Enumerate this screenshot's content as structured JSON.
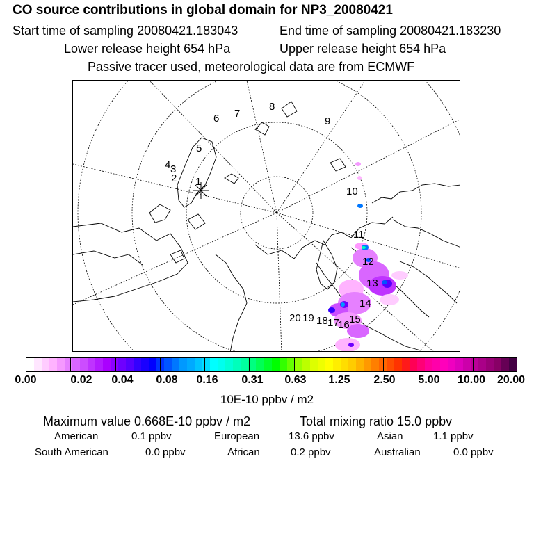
{
  "header": {
    "title": "CO  source contributions in global domain for NP3_20080421",
    "start_time": "Start time of sampling 20080421.183043",
    "end_time": "End time of sampling 20080421.183230",
    "lower_release": "Lower release height  654 hPa",
    "upper_release": "Upper release height  654 hPa",
    "tracer_note": "Passive tracer used, meteorological data are from ECMWF"
  },
  "map": {
    "trajectory_labels": [
      "1",
      "2",
      "3",
      "4",
      "5",
      "6",
      "7",
      "8",
      "9",
      "10",
      "11",
      "12",
      "13",
      "14",
      "15",
      "16",
      "17",
      "18",
      "19",
      "20"
    ],
    "source_marker": "asterisk-icon"
  },
  "colorbar": {
    "tick_labels": [
      "0.00",
      "0.02",
      "0.04",
      "0.08",
      "0.16",
      "0.31",
      "0.63",
      "1.25",
      "2.50",
      "5.00",
      "10.00",
      "20.00"
    ],
    "colors": [
      "#ffffff",
      "#ffe6ff",
      "#ffccff",
      "#ffb3ff",
      "#f599ff",
      "#e680ff",
      "#d966ff",
      "#cc4dff",
      "#bf33ff",
      "#b31aff",
      "#aa00ff",
      "#8c00ff",
      "#6e00ff",
      "#5500ff",
      "#3300ff",
      "#1a00ff",
      "#0000ff",
      "#0033ff",
      "#0055ff",
      "#0077ff",
      "#0099ff",
      "#00aaff",
      "#00c4ff",
      "#00ddff",
      "#00ffff",
      "#00ffee",
      "#00ffd5",
      "#00ffbb",
      "#00ffa0",
      "#00ff80",
      "#00ff55",
      "#00ff2a",
      "#00ff00",
      "#33ff00",
      "#66ff00",
      "#99ff00",
      "#bbff00",
      "#ddff00",
      "#eeff00",
      "#ffff00",
      "#ffee00",
      "#ffdd00",
      "#ffcc00",
      "#ffb300",
      "#ff9900",
      "#ff7f00",
      "#ff6600",
      "#ff4d00",
      "#ff3300",
      "#ff1a1a",
      "#ff0055",
      "#ff0077",
      "#ff0099",
      "#ff00aa",
      "#ff00bb",
      "#f000c0",
      "#dd00bb",
      "#cc00aa",
      "#bb0099",
      "#aa0088",
      "#990077",
      "#880066",
      "#660055",
      "#440044"
    ],
    "unit": "10E-10 ppbv / m2"
  },
  "summary": {
    "max_value": "Maximum value  0.668E-10 ppbv / m2",
    "total_mixing": "Total mixing ratio       15.0 ppbv"
  },
  "regions": {
    "american_label": "American",
    "american_value": "0.1 ppbv",
    "european_label": "European",
    "european_value": "13.6 ppbv",
    "asian_label": "Asian",
    "asian_value": "1.1 ppbv",
    "south_american_label": "South American",
    "south_american_value": "0.0 ppbv",
    "african_label": "African",
    "african_value": "0.2 ppbv",
    "australian_label": "Australian",
    "australian_value": "0.0 ppbv"
  }
}
